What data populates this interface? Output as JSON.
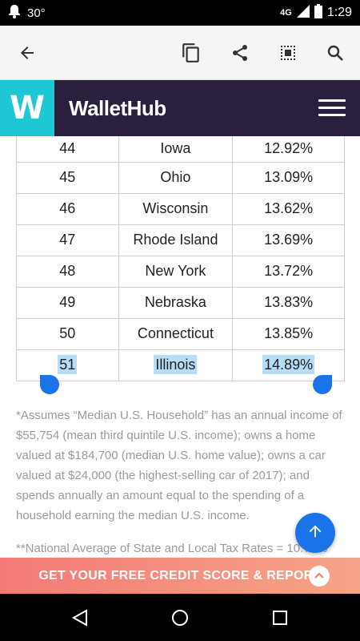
{
  "status_bar": {
    "temperature": "30°",
    "network": "4G",
    "time": "1:29"
  },
  "action_bar": {
    "icons": [
      "back-arrow-icon",
      "copy-icon",
      "share-icon",
      "select-all-icon",
      "search-icon"
    ]
  },
  "header": {
    "logo_letter": "W",
    "brand": "WalletHub"
  },
  "table": {
    "rows": [
      [
        "44",
        "Iowa",
        "12.92%"
      ],
      [
        "45",
        "Ohio",
        "13.09%"
      ],
      [
        "46",
        "Wisconsin",
        "13.62%"
      ],
      [
        "47",
        "Rhode Island",
        "13.69%"
      ],
      [
        "48",
        "New York",
        "13.72%"
      ],
      [
        "49",
        "Nebraska",
        "13.83%"
      ],
      [
        "50",
        "Connecticut",
        "13.85%"
      ],
      [
        "51",
        "Illinois",
        "14.89%"
      ]
    ]
  },
  "footnote": {
    "text": "*Assumes “Median U.S. Household” has an annual income of $55,754 (mean third quintile U.S. income); owns a home valued at $184,700 (median U.S. home value); owns a car valued at $24,000 (the highest-selling car of 2017); and spends annually an amount equal to the spending of a household earning the median U.S. income.",
    "second": "**National Average of State and Local Tax Rates = 10.72%"
  },
  "cta": {
    "label": "GET YOUR FREE CREDIT SCORE & REPORT"
  },
  "colors": {
    "header_bg": "#2a1f3d",
    "logo_bg": "#1fc7d4",
    "accent": "#1a73e8",
    "selection": "#b7dcf5"
  }
}
